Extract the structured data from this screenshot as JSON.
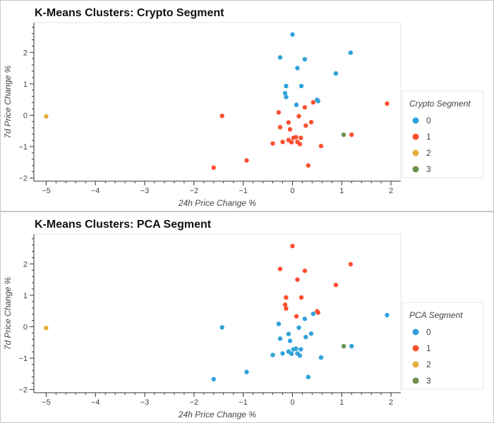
{
  "chart_data": [
    {
      "type": "scatter",
      "title": "K-Means Clusters: Crypto Segment",
      "xlabel": "24h Price Change %",
      "ylabel": "7d Price Change %",
      "legend_title": "Crypto Segment",
      "legend_position": "right",
      "xlim": [
        -5.25,
        2.2
      ],
      "ylim": [
        -2.1,
        2.95
      ],
      "xticks": [
        -5,
        -4,
        -3,
        -2,
        -1,
        0,
        1,
        2
      ],
      "yticks": [
        -2,
        -1,
        0,
        1,
        2
      ],
      "grid": false,
      "colors": {
        "0": "#30a2da",
        "1": "#fc4f30",
        "2": "#e5ae38",
        "3": "#6d904f"
      },
      "series": [
        {
          "name": "0",
          "points": [
            [
              0.0,
              2.57
            ],
            [
              1.18,
              1.99
            ],
            [
              -0.25,
              1.84
            ],
            [
              0.25,
              1.78
            ],
            [
              0.1,
              1.5
            ],
            [
              0.88,
              1.33
            ],
            [
              -0.13,
              0.93
            ],
            [
              0.18,
              0.93
            ],
            [
              -0.15,
              0.7
            ],
            [
              -0.13,
              0.58
            ],
            [
              0.5,
              0.49
            ],
            [
              0.52,
              0.45
            ],
            [
              0.08,
              0.33
            ]
          ]
        },
        {
          "name": "1",
          "points": [
            [
              1.92,
              0.37
            ],
            [
              -1.43,
              -0.02
            ],
            [
              0.42,
              0.41
            ],
            [
              -0.28,
              0.09
            ],
            [
              0.13,
              -0.03
            ],
            [
              0.25,
              0.25
            ],
            [
              -0.08,
              -0.23
            ],
            [
              0.38,
              -0.22
            ],
            [
              -0.25,
              -0.38
            ],
            [
              -0.05,
              -0.45
            ],
            [
              0.27,
              -0.33
            ],
            [
              0.02,
              -0.72
            ],
            [
              0.07,
              -0.7
            ],
            [
              0.17,
              -0.72
            ],
            [
              1.2,
              -0.62
            ],
            [
              -0.08,
              -0.79
            ],
            [
              -0.02,
              -0.86
            ],
            [
              0.1,
              -0.85
            ],
            [
              -0.2,
              -0.85
            ],
            [
              -0.4,
              -0.9
            ],
            [
              0.15,
              -0.92
            ],
            [
              0.58,
              -0.98
            ],
            [
              -0.93,
              -1.44
            ],
            [
              0.32,
              -1.6
            ],
            [
              -1.6,
              -1.67
            ]
          ]
        },
        {
          "name": "2",
          "points": [
            [
              -5.0,
              -0.04
            ]
          ]
        },
        {
          "name": "3",
          "points": [
            [
              1.04,
              -0.62
            ]
          ]
        }
      ]
    },
    {
      "type": "scatter",
      "title": "K-Means Clusters: PCA Segment",
      "xlabel": "24h Price Change %",
      "ylabel": "7d Price Change %",
      "legend_title": "PCA Segment",
      "legend_position": "right",
      "xlim": [
        -5.25,
        2.2
      ],
      "ylim": [
        -2.1,
        2.95
      ],
      "xticks": [
        -5,
        -4,
        -3,
        -2,
        -1,
        0,
        1,
        2
      ],
      "yticks": [
        -2,
        -1,
        0,
        1,
        2
      ],
      "grid": false,
      "colors": {
        "0": "#30a2da",
        "1": "#fc4f30",
        "2": "#e5ae38",
        "3": "#6d904f"
      },
      "series": [
        {
          "name": "0",
          "points": [
            [
              1.92,
              0.37
            ],
            [
              -1.43,
              -0.02
            ],
            [
              0.42,
              0.41
            ],
            [
              -0.28,
              0.09
            ],
            [
              0.13,
              -0.03
            ],
            [
              0.25,
              0.25
            ],
            [
              -0.08,
              -0.23
            ],
            [
              0.38,
              -0.22
            ],
            [
              -0.25,
              -0.38
            ],
            [
              -0.05,
              -0.45
            ],
            [
              0.27,
              -0.33
            ],
            [
              0.02,
              -0.72
            ],
            [
              0.07,
              -0.7
            ],
            [
              0.17,
              -0.72
            ],
            [
              1.2,
              -0.62
            ],
            [
              -0.08,
              -0.79
            ],
            [
              -0.02,
              -0.86
            ],
            [
              0.1,
              -0.85
            ],
            [
              -0.2,
              -0.85
            ],
            [
              -0.4,
              -0.9
            ],
            [
              0.15,
              -0.92
            ],
            [
              0.58,
              -0.98
            ],
            [
              -0.93,
              -1.44
            ],
            [
              0.32,
              -1.6
            ],
            [
              -1.6,
              -1.67
            ]
          ]
        },
        {
          "name": "1",
          "points": [
            [
              0.0,
              2.57
            ],
            [
              1.18,
              1.99
            ],
            [
              -0.25,
              1.84
            ],
            [
              0.25,
              1.78
            ],
            [
              0.1,
              1.5
            ],
            [
              0.88,
              1.33
            ],
            [
              -0.13,
              0.93
            ],
            [
              0.18,
              0.93
            ],
            [
              -0.15,
              0.7
            ],
            [
              -0.13,
              0.58
            ],
            [
              0.5,
              0.49
            ],
            [
              0.52,
              0.45
            ],
            [
              0.08,
              0.33
            ]
          ]
        },
        {
          "name": "2",
          "points": [
            [
              -5.0,
              -0.04
            ]
          ]
        },
        {
          "name": "3",
          "points": [
            [
              1.04,
              -0.62
            ]
          ]
        }
      ]
    }
  ]
}
